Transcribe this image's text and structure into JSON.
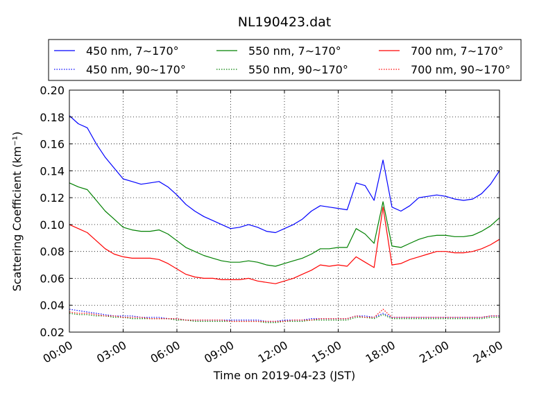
{
  "chart_data": {
    "type": "line",
    "title": "NL190423.dat",
    "xlabel": "Time on 2019-04-23 (JST)",
    "ylabel": "Scattering Coefficient (km⁻¹)",
    "xlim": [
      0,
      24
    ],
    "ylim": [
      0.02,
      0.2
    ],
    "x_unit": "hour",
    "x_ticks": [
      0,
      3,
      6,
      9,
      12,
      15,
      18,
      21,
      24
    ],
    "x_tick_labels": [
      "00:00",
      "03:00",
      "06:00",
      "09:00",
      "12:00",
      "15:00",
      "18:00",
      "21:00",
      "24:00"
    ],
    "y_ticks": [
      0.02,
      0.04,
      0.06,
      0.08,
      0.1,
      0.12,
      0.14,
      0.16,
      0.18,
      0.2
    ],
    "y_tick_labels": [
      "0.02",
      "0.04",
      "0.06",
      "0.08",
      "0.10",
      "0.12",
      "0.14",
      "0.16",
      "0.18",
      "0.20"
    ],
    "grid": true,
    "legend_position": "top",
    "x": [
      0,
      0.5,
      1,
      1.5,
      2,
      2.5,
      3,
      3.5,
      4,
      4.5,
      5,
      5.5,
      6,
      6.5,
      7,
      7.5,
      8,
      8.5,
      9,
      9.5,
      10,
      10.5,
      11,
      11.5,
      12,
      12.5,
      13,
      13.5,
      14,
      14.5,
      15,
      15.5,
      16,
      16.5,
      17,
      17.5,
      18,
      18.5,
      19,
      19.5,
      20,
      20.5,
      21,
      21.5,
      22,
      22.5,
      23,
      23.5,
      24
    ],
    "series": [
      {
        "name": "450 nm, 7∼170°",
        "color": "#0000ff",
        "style": "solid",
        "values": [
          0.181,
          0.175,
          0.172,
          0.16,
          0.15,
          0.142,
          0.134,
          0.132,
          0.13,
          0.131,
          0.132,
          0.128,
          0.122,
          0.115,
          0.11,
          0.106,
          0.103,
          0.1,
          0.097,
          0.098,
          0.1,
          0.098,
          0.095,
          0.094,
          0.097,
          0.1,
          0.104,
          0.11,
          0.114,
          0.113,
          0.112,
          0.111,
          0.131,
          0.129,
          0.118,
          0.148,
          0.113,
          0.11,
          0.114,
          0.12,
          0.121,
          0.122,
          0.121,
          0.119,
          0.118,
          0.119,
          0.123,
          0.13,
          0.14
        ]
      },
      {
        "name": "450 nm, 90∼170°",
        "color": "#0000ff",
        "style": "dotted",
        "values": [
          0.037,
          0.036,
          0.035,
          0.034,
          0.033,
          0.032,
          0.032,
          0.032,
          0.031,
          0.031,
          0.031,
          0.03,
          0.03,
          0.029,
          0.029,
          0.029,
          0.029,
          0.029,
          0.029,
          0.029,
          0.029,
          0.029,
          0.028,
          0.028,
          0.029,
          0.029,
          0.029,
          0.03,
          0.03,
          0.03,
          0.03,
          0.03,
          0.032,
          0.032,
          0.031,
          0.034,
          0.031,
          0.031,
          0.031,
          0.031,
          0.031,
          0.031,
          0.031,
          0.031,
          0.031,
          0.031,
          0.031,
          0.032,
          0.032
        ]
      },
      {
        "name": "550 nm, 7∼170°",
        "color": "#008000",
        "style": "solid",
        "values": [
          0.131,
          0.128,
          0.126,
          0.118,
          0.11,
          0.104,
          0.098,
          0.096,
          0.095,
          0.095,
          0.096,
          0.093,
          0.088,
          0.083,
          0.08,
          0.077,
          0.075,
          0.073,
          0.072,
          0.072,
          0.073,
          0.072,
          0.07,
          0.069,
          0.071,
          0.073,
          0.075,
          0.078,
          0.082,
          0.082,
          0.083,
          0.083,
          0.097,
          0.093,
          0.086,
          0.117,
          0.084,
          0.083,
          0.086,
          0.089,
          0.091,
          0.092,
          0.092,
          0.091,
          0.091,
          0.092,
          0.095,
          0.099,
          0.105
        ]
      },
      {
        "name": "550 nm, 90∼170°",
        "color": "#008000",
        "style": "dotted",
        "values": [
          0.034,
          0.033,
          0.033,
          0.032,
          0.032,
          0.031,
          0.031,
          0.03,
          0.03,
          0.03,
          0.03,
          0.03,
          0.029,
          0.029,
          0.028,
          0.028,
          0.028,
          0.028,
          0.028,
          0.028,
          0.028,
          0.028,
          0.027,
          0.027,
          0.028,
          0.028,
          0.028,
          0.029,
          0.029,
          0.029,
          0.029,
          0.029,
          0.031,
          0.031,
          0.03,
          0.033,
          0.03,
          0.03,
          0.03,
          0.03,
          0.03,
          0.03,
          0.03,
          0.03,
          0.03,
          0.03,
          0.03,
          0.031,
          0.031
        ]
      },
      {
        "name": "700 nm, 7∼170°",
        "color": "#ff0000",
        "style": "solid",
        "values": [
          0.1,
          0.097,
          0.094,
          0.088,
          0.082,
          0.078,
          0.076,
          0.075,
          0.075,
          0.075,
          0.074,
          0.071,
          0.067,
          0.063,
          0.061,
          0.06,
          0.06,
          0.059,
          0.059,
          0.059,
          0.06,
          0.058,
          0.057,
          0.056,
          0.058,
          0.06,
          0.063,
          0.066,
          0.07,
          0.069,
          0.07,
          0.069,
          0.076,
          0.072,
          0.068,
          0.113,
          0.07,
          0.071,
          0.074,
          0.076,
          0.078,
          0.08,
          0.08,
          0.079,
          0.079,
          0.08,
          0.082,
          0.085,
          0.089
        ]
      },
      {
        "name": "700 nm, 90∼170°",
        "color": "#ff0000",
        "style": "dotted",
        "values": [
          0.035,
          0.034,
          0.034,
          0.033,
          0.032,
          0.032,
          0.031,
          0.031,
          0.031,
          0.03,
          0.03,
          0.03,
          0.03,
          0.029,
          0.029,
          0.029,
          0.029,
          0.029,
          0.028,
          0.028,
          0.028,
          0.028,
          0.028,
          0.028,
          0.028,
          0.029,
          0.029,
          0.029,
          0.03,
          0.03,
          0.03,
          0.03,
          0.032,
          0.031,
          0.031,
          0.037,
          0.031,
          0.031,
          0.031,
          0.031,
          0.031,
          0.031,
          0.031,
          0.031,
          0.031,
          0.031,
          0.031,
          0.032,
          0.032
        ]
      }
    ]
  }
}
